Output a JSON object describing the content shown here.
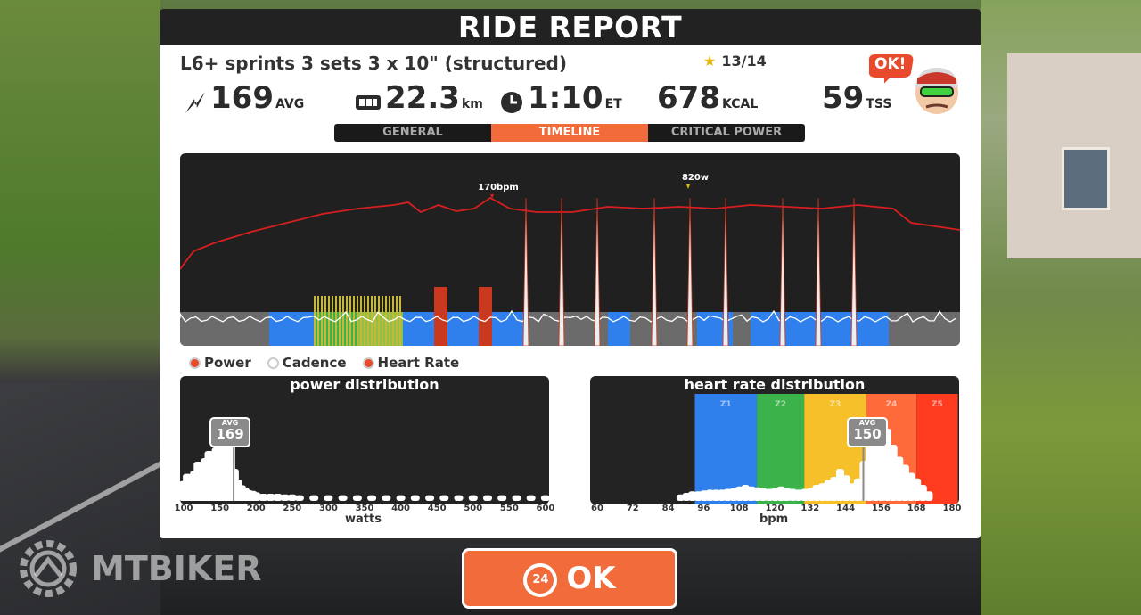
{
  "title": "RIDE REPORT",
  "workout_name": "L6+ sprints 3 sets 3 x 10\" (structured)",
  "rating": "13/14",
  "stats": {
    "power": {
      "value": "169",
      "unit": "AVG"
    },
    "distance": {
      "value": "22.3",
      "unit": "km"
    },
    "time": {
      "value": "1:10",
      "unit": "ET"
    },
    "calories": {
      "value": "678",
      "unit": "KCAL"
    },
    "tss": {
      "value": "59",
      "unit": "TSS"
    }
  },
  "mascot_badge": "OK!",
  "tabs": [
    "GENERAL",
    "TIMELINE",
    "CRITICAL POWER"
  ],
  "active_tab": "TIMELINE",
  "timeline": {
    "hr_peak_label": "170bpm",
    "power_peak_label": "820w"
  },
  "legend": [
    "Power",
    "Cadence",
    "Heart Rate"
  ],
  "power_distribution": {
    "title": "power distribution",
    "xlabel": "watts",
    "ticks": [
      "100",
      "150",
      "200",
      "250",
      "300",
      "350",
      "400",
      "450",
      "500",
      "550",
      "600"
    ],
    "avg_label": "AVG",
    "avg_value": "169"
  },
  "hr_distribution": {
    "title": "heart rate distribution",
    "xlabel": "bpm",
    "ticks": [
      "60",
      "72",
      "84",
      "96",
      "108",
      "120",
      "132",
      "144",
      "156",
      "168",
      "180"
    ],
    "zones": [
      "Z1",
      "Z2",
      "Z3",
      "Z4",
      "Z5"
    ],
    "zone_colors": [
      "#2f80ed",
      "#3cb24a",
      "#f5c02a",
      "#ff6a3a",
      "#ff3b1f"
    ],
    "avg_label": "AVG",
    "avg_value": "150"
  },
  "ok_button": {
    "badge": "24",
    "label": "OK"
  },
  "watermark": "MTBIKER",
  "chart_data": [
    {
      "type": "bar",
      "title": "power distribution",
      "xlabel": "watts",
      "x": [
        100,
        105,
        110,
        115,
        120,
        125,
        130,
        135,
        140,
        145,
        150,
        155,
        160,
        165,
        170,
        175,
        180,
        185,
        190,
        195,
        200,
        210,
        220,
        230,
        240,
        250,
        260,
        280,
        300,
        320,
        340,
        360,
        380,
        400,
        420,
        440,
        460,
        480,
        500,
        520,
        540,
        560,
        580,
        600
      ],
      "values": [
        0.28,
        0.38,
        0.32,
        0.42,
        0.55,
        0.5,
        0.6,
        0.7,
        0.62,
        0.75,
        0.82,
        0.95,
        1.0,
        0.88,
        0.45,
        0.3,
        0.22,
        0.18,
        0.15,
        0.14,
        0.12,
        0.1,
        0.1,
        0.1,
        0.09,
        0.09,
        0.08,
        0.08,
        0.08,
        0.08,
        0.08,
        0.08,
        0.08,
        0.08,
        0.08,
        0.08,
        0.08,
        0.08,
        0.08,
        0.08,
        0.08,
        0.08,
        0.08,
        0.08
      ],
      "xlim": [
        95,
        605
      ]
    },
    {
      "type": "bar",
      "title": "heart rate distribution",
      "xlabel": "bpm",
      "x": [
        88,
        90,
        92,
        94,
        96,
        98,
        100,
        102,
        104,
        106,
        108,
        110,
        112,
        114,
        116,
        118,
        120,
        122,
        124,
        126,
        128,
        130,
        132,
        134,
        136,
        138,
        140,
        142,
        144,
        146,
        148,
        150,
        152,
        154,
        156,
        158,
        160,
        162,
        164,
        166,
        168,
        170,
        172
      ],
      "values": [
        0.08,
        0.1,
        0.12,
        0.12,
        0.13,
        0.14,
        0.14,
        0.14,
        0.15,
        0.16,
        0.18,
        0.2,
        0.18,
        0.17,
        0.16,
        0.15,
        0.16,
        0.18,
        0.16,
        0.15,
        0.14,
        0.15,
        0.16,
        0.2,
        0.22,
        0.26,
        0.3,
        0.4,
        0.32,
        0.22,
        0.28,
        0.5,
        0.75,
        0.85,
        0.95,
        0.9,
        0.7,
        0.55,
        0.45,
        0.35,
        0.28,
        0.2,
        0.12
      ],
      "xlim": [
        60,
        180
      ]
    }
  ]
}
